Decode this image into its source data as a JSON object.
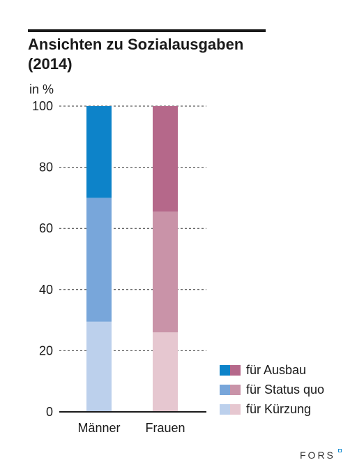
{
  "title": "Ansichten zu Sozialausgaben (2014)",
  "unit_label": "in %",
  "logo_text": "FORS",
  "chart_data": {
    "type": "bar",
    "stacked": true,
    "categories": [
      "Männer",
      "Frauen"
    ],
    "series": [
      {
        "name": "für Kürzung",
        "values": [
          29.5,
          26
        ],
        "colors": [
          "#bcd0ec",
          "#e6c7d0"
        ]
      },
      {
        "name": "für Status quo",
        "values": [
          40.5,
          39.5
        ],
        "colors": [
          "#78a6da",
          "#c993a8"
        ]
      },
      {
        "name": "für Ausbau",
        "values": [
          30,
          34.5
        ],
        "colors": [
          "#0d83c9",
          "#b5688a"
        ]
      }
    ],
    "y_ticks": [
      0,
      20,
      40,
      60,
      80,
      100
    ],
    "ylim": [
      0,
      100
    ],
    "grid": "dashed horizontal",
    "legend_position": "bottom-right"
  }
}
